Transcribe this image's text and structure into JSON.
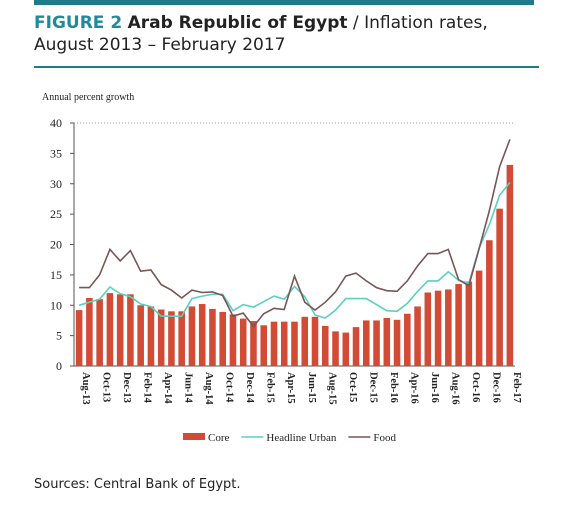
{
  "figure_label": "FIGURE 2",
  "country": "Arab Republic of Egypt",
  "title_rest": " / Inflation rates, August 2013 – February 2017",
  "source": "Sources: Central Bank of Egypt.",
  "chart_data": {
    "type": "bar_line",
    "y_label": "Annual percent growth",
    "categories": [
      "Aug-13",
      null,
      "Oct-13",
      null,
      "Dec-13",
      null,
      "Feb-14",
      null,
      "Apr-14",
      null,
      "Jun-14",
      null,
      "Aug-14",
      null,
      "Oct-14",
      null,
      "Dec-14",
      null,
      "Feb-15",
      null,
      "Apr-15",
      null,
      "Jun-15",
      null,
      "Aug-15",
      null,
      "Oct-15",
      null,
      "Dec-15",
      null,
      "Feb-16",
      null,
      "Apr-16",
      null,
      "Jun-16",
      null,
      "Aug-16",
      null,
      "Oct-16",
      null,
      "Dec-16",
      null,
      "Feb-17"
    ],
    "series": [
      {
        "name": "Core",
        "kind": "bar",
        "color": "#d14b35",
        "values": [
          9.2,
          11.2,
          11,
          12,
          11.8,
          11.8,
          10,
          9.8,
          9.3,
          9,
          9,
          9.8,
          10.2,
          9.4,
          8.9,
          8.5,
          7.8,
          7.4,
          6.7,
          7.3,
          7.3,
          7.3,
          8.1,
          8.1,
          6.6,
          5.7,
          5.5,
          6.4,
          7.5,
          7.5,
          7.9,
          7.6,
          8.6,
          9.8,
          12.1,
          12.4,
          12.6,
          13.5,
          13.9,
          15.7,
          20.7,
          25.9,
          33.1
        ]
      },
      {
        "name": "Headline Urban",
        "kind": "line",
        "color": "#5ccfbf",
        "values": [
          10,
          10.5,
          11,
          13,
          11.9,
          11.4,
          10.2,
          9.8,
          8.2,
          8.2,
          8.2,
          11.1,
          11.5,
          11.8,
          11.8,
          9.1,
          10.1,
          9.7,
          10.6,
          11.5,
          11.0,
          13.1,
          11.4,
          8.4,
          7.9,
          9.2,
          11.1,
          11.1,
          11.1,
          10.1,
          9.1,
          9.0,
          10.3,
          12.3,
          14.0,
          14.0,
          15.5,
          14.1,
          13.6,
          19.4,
          23.3,
          28.1,
          30.2
        ]
      },
      {
        "name": "Food",
        "kind": "line",
        "color": "#7a5555",
        "values": [
          12.9,
          12.9,
          15,
          19.2,
          17.3,
          19,
          15.6,
          15.8,
          13.4,
          12.5,
          11.2,
          12.5,
          12.1,
          12.2,
          11.6,
          8.2,
          8.7,
          6.5,
          8.6,
          9.5,
          9.3,
          14.8,
          10.5,
          9.2,
          10.5,
          12.2,
          14.8,
          15.3,
          14.0,
          12.9,
          12.4,
          12.3,
          14,
          16.5,
          18.5,
          18.5,
          19.2,
          14.2,
          13.2,
          19.3,
          25.6,
          32.8,
          37.3
        ]
      }
    ],
    "ylim": [
      0,
      40
    ],
    "yticks": [
      0,
      5,
      10,
      15,
      20,
      25,
      30,
      35,
      40
    ],
    "grid": false
  }
}
